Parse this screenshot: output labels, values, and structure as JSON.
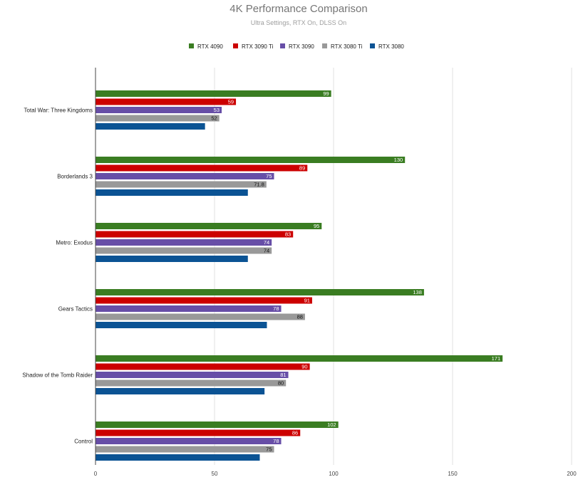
{
  "chart_data": {
    "type": "bar",
    "orientation": "horizontal",
    "title": "4K Performance Comparison",
    "subtitle": "Ultra Settings, RTX On, DLSS On",
    "xlabel": "",
    "ylabel": "",
    "xlim": [
      0,
      200
    ],
    "xticks": [
      "0",
      "50",
      "100",
      "150",
      "200"
    ],
    "grid": true,
    "legend_position": "top",
    "categories": [
      "Total War: Three Kingdoms",
      "Borderlands 3",
      "Metro: Exodus",
      "Gears Tactics",
      "Shadow of the Tomb Raider",
      "Control"
    ],
    "series": [
      {
        "name": "RTX 4090",
        "color": "#3a7d22",
        "values": [
          99,
          130,
          95,
          138,
          171,
          102
        ],
        "labels": [
          "99",
          "130",
          "95",
          "138",
          "171",
          "102"
        ],
        "label_color": "#ffffff"
      },
      {
        "name": "RTX 3090 Ti",
        "color": "#cc0000",
        "values": [
          59,
          89,
          83,
          91,
          90,
          86
        ],
        "labels": [
          "59",
          "89",
          "83",
          "91",
          "90",
          "86"
        ],
        "label_color": "#ffffff"
      },
      {
        "name": "RTX 3090",
        "color": "#674ea7",
        "values": [
          53,
          75,
          74,
          78,
          81,
          78
        ],
        "labels": [
          "53",
          "75",
          "74",
          "78",
          "81",
          "78"
        ],
        "label_color": "#ffffff"
      },
      {
        "name": "RTX 3080 Ti",
        "color": "#999999",
        "values": [
          52,
          71.8,
          74,
          88,
          80,
          75
        ],
        "labels": [
          "52",
          "71.8",
          "74",
          "88",
          "80",
          "75"
        ],
        "label_color": "#111111"
      },
      {
        "name": "RTX 3080",
        "color": "#0b5394",
        "values": [
          46,
          64,
          64,
          72,
          71,
          69
        ],
        "labels": [
          "",
          "",
          "",
          "",
          "",
          ""
        ],
        "label_color": "#ffffff"
      }
    ]
  }
}
